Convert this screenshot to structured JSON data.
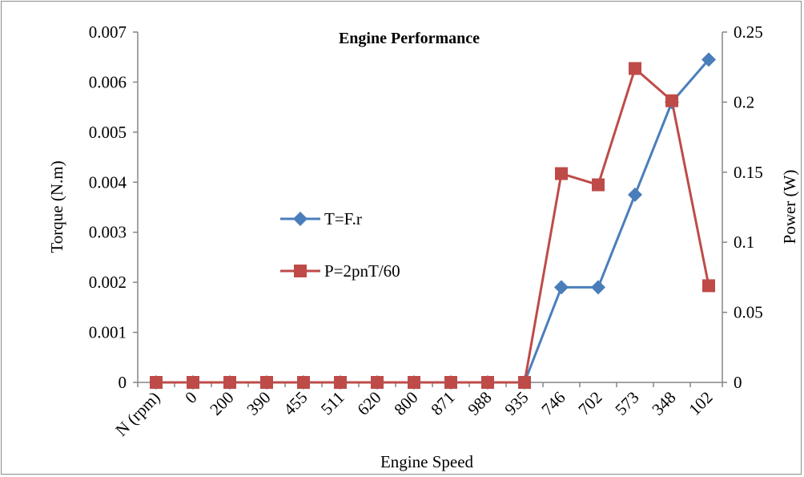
{
  "chart_data": {
    "type": "line",
    "title": "Engine Performance",
    "xlabel": "Engine Speed",
    "ylabel_left": "Torque  (N.m)",
    "ylabel_right": "Power (W)",
    "categories": [
      "N (rpm)",
      "0",
      "200",
      "390",
      "455",
      "511",
      "620",
      "800",
      "871",
      "988",
      "935",
      "746",
      "702",
      "573",
      "348",
      "102"
    ],
    "ylim_left": [
      0,
      0.007
    ],
    "yticks_left": [
      "0",
      "0.001",
      "0.002",
      "0.003",
      "0.004",
      "0.005",
      "0.006",
      "0.007"
    ],
    "ylim_right": [
      0,
      0.25
    ],
    "yticks_right": [
      "0",
      "0.05",
      "0.1",
      "0.15",
      "0.2",
      "0.25"
    ],
    "legend_position": "center-left",
    "grid": false,
    "series": [
      {
        "name": "T=F.r",
        "axis": "left",
        "color": "#4a7ebb",
        "marker": "diamond",
        "values": [
          0,
          0,
          0,
          0,
          0,
          0,
          0,
          0,
          0,
          0,
          0,
          0.0019,
          0.0019,
          0.00375,
          0.0056,
          0.00645
        ]
      },
      {
        "name": "P=2pnT/60",
        "axis": "right",
        "color": "#be4b48",
        "marker": "square",
        "values": [
          0,
          0,
          0,
          0,
          0,
          0,
          0,
          0,
          0,
          0,
          0,
          0.149,
          0.141,
          0.224,
          0.201,
          0.069
        ]
      }
    ]
  }
}
